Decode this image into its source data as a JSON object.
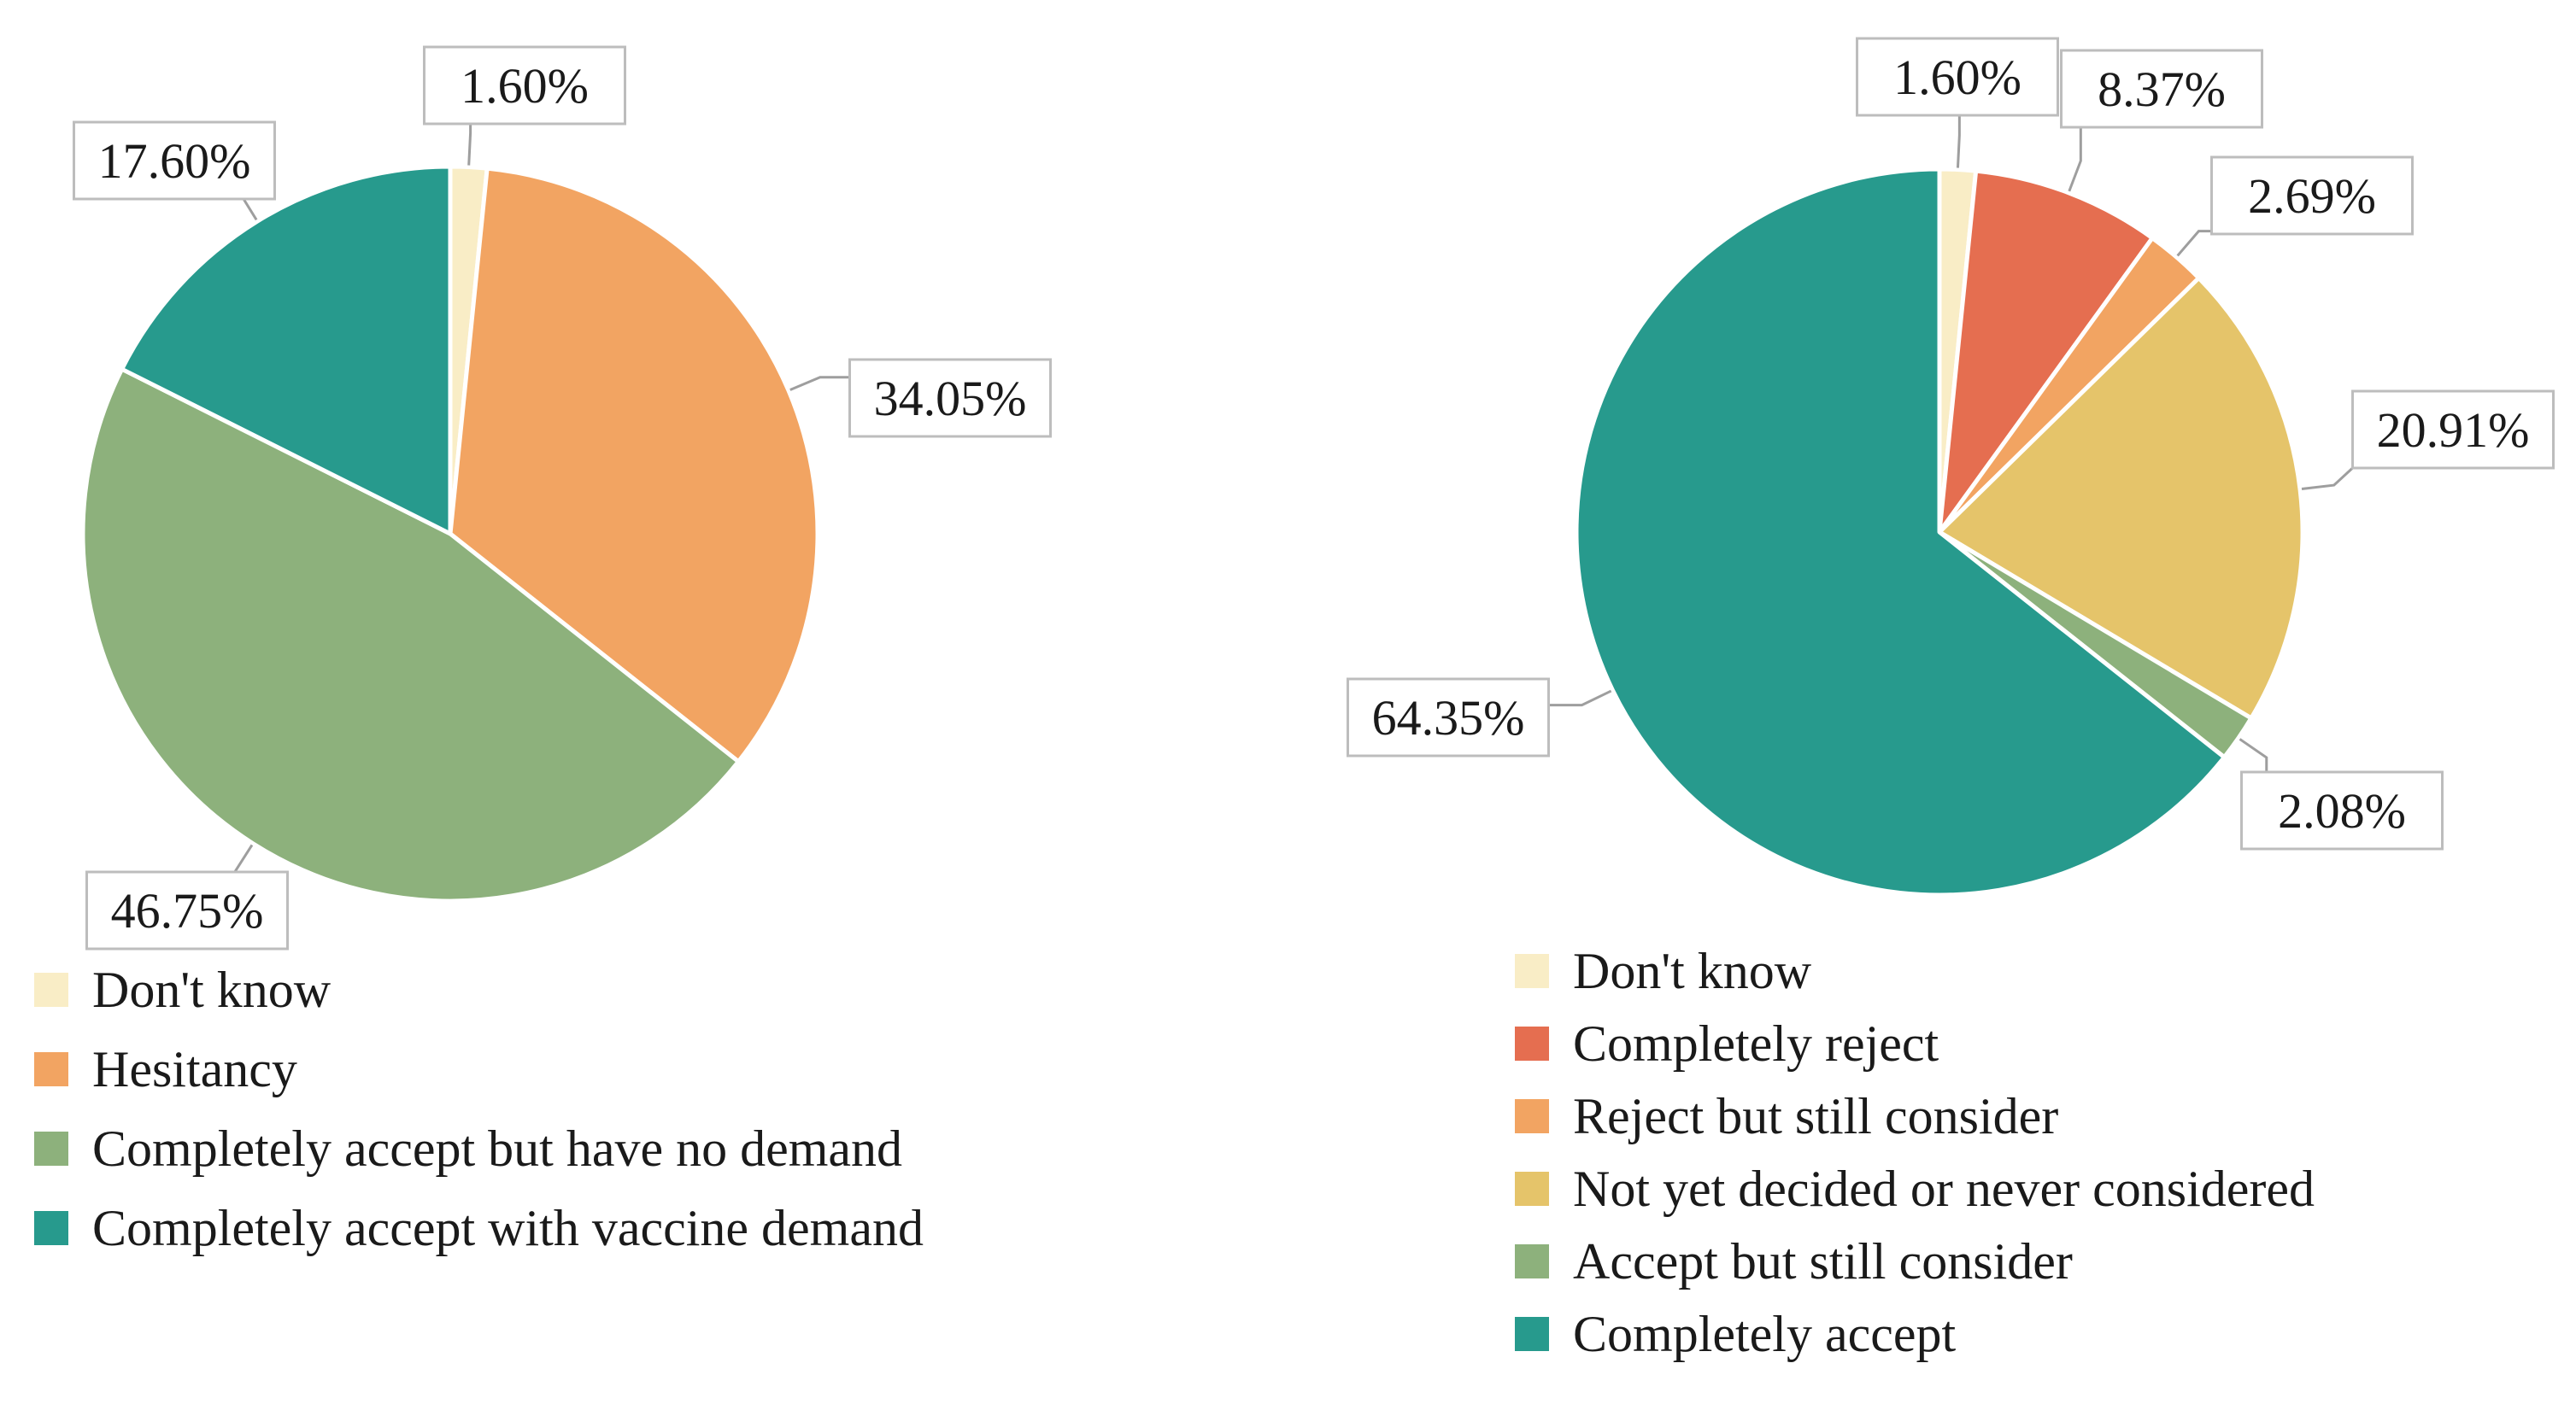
{
  "chart_data": [
    {
      "type": "pie",
      "title": "",
      "start": "12 o'clock, clockwise",
      "legend_position": "bottom-left",
      "slices": [
        {
          "name": "Don't know",
          "value": 1.6,
          "label": "1.60%",
          "color": "#F9EDC6"
        },
        {
          "name": "Hesitancy",
          "value": 34.05,
          "label": "34.05%",
          "color": "#F2A462"
        },
        {
          "name": "Completely accept but have no demand",
          "value": 46.75,
          "label": "46.75%",
          "color": "#8DB17C"
        },
        {
          "name": "Completely accept with vaccine demand",
          "value": 17.6,
          "label": "17.60%",
          "color": "#279A8D"
        }
      ]
    },
    {
      "type": "pie",
      "title": "",
      "start": "12 o'clock, clockwise",
      "legend_position": "bottom",
      "slices": [
        {
          "name": "Don't know",
          "value": 1.6,
          "label": "1.60%",
          "color": "#F9EDC6"
        },
        {
          "name": "Completely reject",
          "value": 8.37,
          "label": "8.37%",
          "color": "#E56E50"
        },
        {
          "name": "Reject but still consider",
          "value": 2.69,
          "label": "2.69%",
          "color": "#F2A462"
        },
        {
          "name": "Not yet decided or never considered",
          "value": 20.91,
          "label": "20.91%",
          "color": "#E5C46A"
        },
        {
          "name": "Accept but still consider",
          "value": 2.08,
          "label": "2.08%",
          "color": "#8DB17C"
        },
        {
          "name": "Completely accept",
          "value": 64.35,
          "label": "64.35%",
          "color": "#279A8D"
        }
      ]
    }
  ]
}
